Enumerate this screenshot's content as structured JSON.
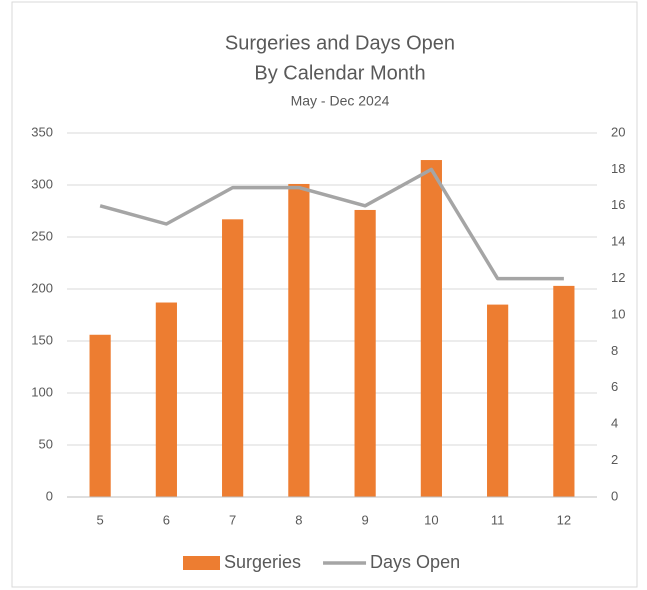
{
  "chart_data": {
    "type": "bar-line",
    "title": [
      "Surgeries and Days Open",
      "By Calendar Month"
    ],
    "subtitle": "May - Dec 2024",
    "categories": [
      "5",
      "6",
      "7",
      "8",
      "9",
      "10",
      "11",
      "12"
    ],
    "series": [
      {
        "name": "Surgeries",
        "type": "bar",
        "color": "#ed7d31",
        "values": [
          156,
          187,
          267,
          301,
          276,
          324,
          185,
          203
        ]
      },
      {
        "name": "Days Open",
        "type": "line",
        "axis": "y2",
        "color": "#a5a5a5",
        "values": [
          16,
          15,
          17,
          17,
          16,
          18,
          12,
          12
        ]
      }
    ],
    "ylim": [
      0,
      350
    ],
    "yticks": [
      0,
      50,
      100,
      150,
      200,
      250,
      300,
      350
    ],
    "y2lim": [
      0,
      20
    ],
    "y2ticks": [
      0,
      2,
      4,
      6,
      8,
      10,
      12,
      14,
      16,
      18,
      20
    ],
    "grid": true,
    "legend": "bottom"
  }
}
